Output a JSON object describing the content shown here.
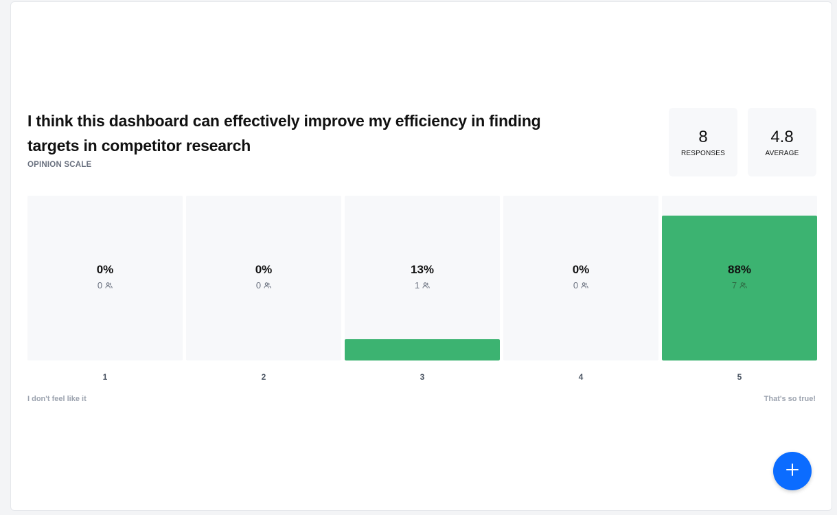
{
  "question": {
    "text": "I think this dashboard can effectively improve my efficiency in finding targets in competitor research",
    "type": "OPINION SCALE"
  },
  "stats": {
    "responses": {
      "value": "8",
      "label": "RESPONSES"
    },
    "average": {
      "value": "4.8",
      "label": "AVERAGE"
    }
  },
  "scale": {
    "options": [
      {
        "label": "1",
        "percent": "0%",
        "count": "0",
        "fill_fraction": 0.0
      },
      {
        "label": "2",
        "percent": "0%",
        "count": "0",
        "fill_fraction": 0.0
      },
      {
        "label": "3",
        "percent": "13%",
        "count": "1",
        "fill_fraction": 0.13
      },
      {
        "label": "4",
        "percent": "0%",
        "count": "0",
        "fill_fraction": 0.0
      },
      {
        "label": "5",
        "percent": "88%",
        "count": "7",
        "fill_fraction": 0.88
      }
    ],
    "min_label": "I don't feel like it",
    "max_label": "That's so true!"
  },
  "colors": {
    "bar_fill": "#3cb371",
    "column_bg": "#f7f8fa",
    "fab": "#0b6cff"
  },
  "icons": {
    "count_icon": "people-icon",
    "fab_icon": "plus-icon"
  }
}
